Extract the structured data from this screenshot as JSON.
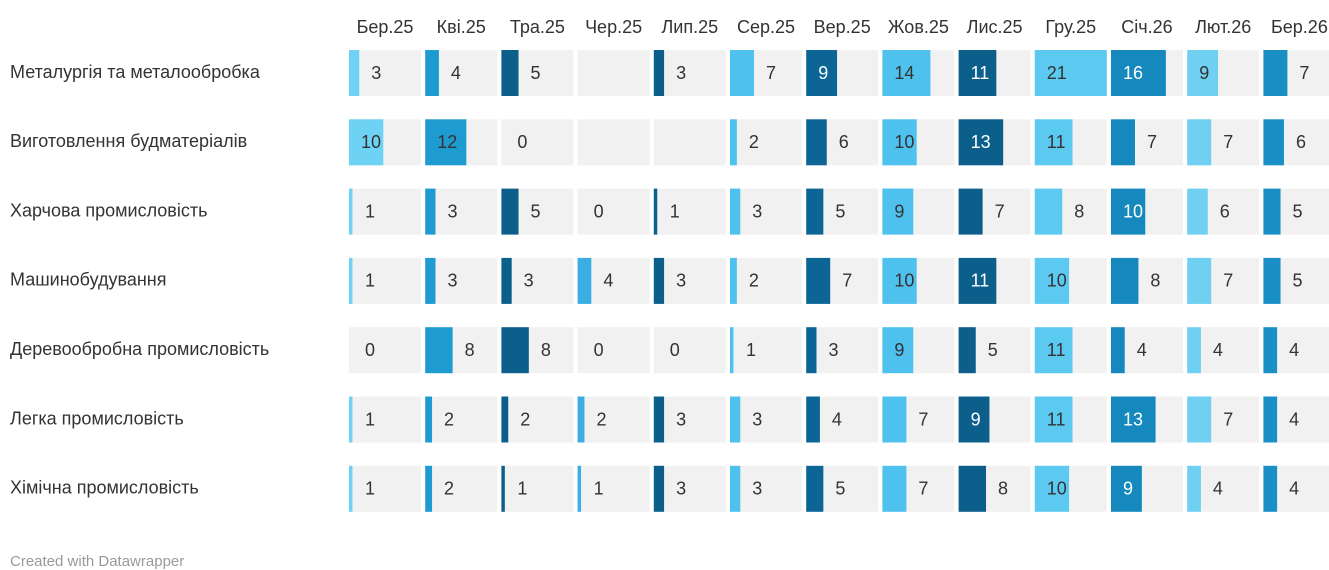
{
  "chart_data": {
    "type": "bar-table",
    "columns": [
      "Бер.25",
      "Кві.25",
      "Тра.25",
      "Чер.25",
      "Лип.25",
      "Сер.25",
      "Вер.25",
      "Жов.25",
      "Лис.25",
      "Гру.25",
      "Січ.26",
      "Лют.26",
      "Бер.26"
    ],
    "colors": [
      "#6dd2f3",
      "#1e9bd1",
      "#0b5f8a",
      "#3aaee2",
      "#0b5f8a",
      "#4ec1ee",
      "#0c6594",
      "#4ec1ee",
      "#0b5f8a",
      "#5ccaf0",
      "#1588bd",
      "#6fd0f2",
      "#1a8fc6"
    ],
    "xlim": [
      0,
      21
    ],
    "rows": [
      {
        "name": "Металургія та металообробка",
        "values": [
          3,
          4,
          5,
          null,
          3,
          7,
          9,
          14,
          11,
          21,
          16,
          9,
          7
        ]
      },
      {
        "name": "Виготовлення будматеріалів",
        "values": [
          10,
          12,
          0,
          null,
          null,
          2,
          6,
          10,
          13,
          11,
          7,
          7,
          6
        ]
      },
      {
        "name": "Харчова промисловість",
        "values": [
          1,
          3,
          5,
          0,
          1,
          3,
          5,
          9,
          7,
          8,
          10,
          6,
          5
        ]
      },
      {
        "name": "Машинобудування",
        "values": [
          1,
          3,
          3,
          4,
          3,
          2,
          7,
          10,
          11,
          10,
          8,
          7,
          5
        ]
      },
      {
        "name": "Деревообробна промисловість",
        "values": [
          0,
          8,
          8,
          0,
          0,
          1,
          3,
          9,
          5,
          11,
          4,
          4,
          4
        ]
      },
      {
        "name": "Легка промисловість",
        "values": [
          1,
          2,
          2,
          2,
          3,
          3,
          4,
          7,
          9,
          11,
          13,
          7,
          4
        ]
      },
      {
        "name": "Хімічна промисловість",
        "values": [
          1,
          2,
          1,
          1,
          3,
          3,
          5,
          7,
          8,
          10,
          9,
          4,
          4
        ]
      }
    ],
    "note": "Created with Datawrapper"
  }
}
